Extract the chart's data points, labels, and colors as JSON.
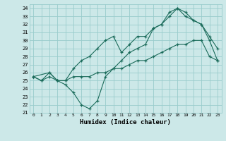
{
  "xlabel": "Humidex (Indice chaleur)",
  "bg_color": "#cce8e8",
  "grid_color": "#99cccc",
  "line_color": "#1a6b5a",
  "xlim": [
    -0.5,
    23.5
  ],
  "ylim": [
    21,
    34.5
  ],
  "xticks": [
    0,
    1,
    2,
    3,
    4,
    5,
    6,
    7,
    8,
    9,
    10,
    11,
    12,
    13,
    14,
    15,
    16,
    17,
    18,
    19,
    20,
    21,
    22,
    23
  ],
  "yticks": [
    21,
    22,
    23,
    24,
    25,
    26,
    27,
    28,
    29,
    30,
    31,
    32,
    33,
    34
  ],
  "line1_x": [
    0,
    1,
    2,
    3,
    4,
    5,
    6,
    7,
    8,
    9,
    10,
    11,
    12,
    13,
    14,
    15,
    16,
    17,
    18,
    19,
    20,
    21,
    22,
    23
  ],
  "line1_y": [
    25.5,
    25.0,
    26.0,
    25.0,
    24.5,
    23.5,
    22.0,
    21.5,
    22.5,
    25.5,
    26.5,
    27.5,
    28.5,
    29.0,
    29.5,
    31.5,
    32.0,
    33.5,
    34.0,
    33.0,
    32.5,
    32.0,
    30.0,
    27.5
  ],
  "line2_x": [
    0,
    1,
    2,
    3,
    4,
    5,
    6,
    7,
    8,
    9,
    10,
    11,
    12,
    13,
    14,
    15,
    16,
    17,
    18,
    19,
    20,
    21,
    22,
    23
  ],
  "line2_y": [
    25.5,
    25.0,
    25.5,
    25.0,
    25.0,
    25.5,
    25.5,
    25.5,
    26.0,
    26.0,
    26.5,
    26.5,
    27.0,
    27.5,
    27.5,
    28.0,
    28.5,
    29.0,
    29.5,
    29.5,
    30.0,
    30.0,
    28.0,
    27.5
  ],
  "line3_x": [
    0,
    2,
    3,
    4,
    5,
    6,
    7,
    8,
    9,
    10,
    11,
    12,
    13,
    14,
    15,
    16,
    17,
    18,
    19,
    20,
    21,
    22,
    23
  ],
  "line3_y": [
    25.5,
    26.0,
    25.0,
    25.0,
    26.5,
    27.5,
    28.0,
    29.0,
    30.0,
    30.5,
    28.5,
    29.5,
    30.5,
    30.5,
    31.5,
    32.0,
    33.0,
    34.0,
    33.5,
    32.5,
    32.0,
    30.5,
    29.0
  ]
}
